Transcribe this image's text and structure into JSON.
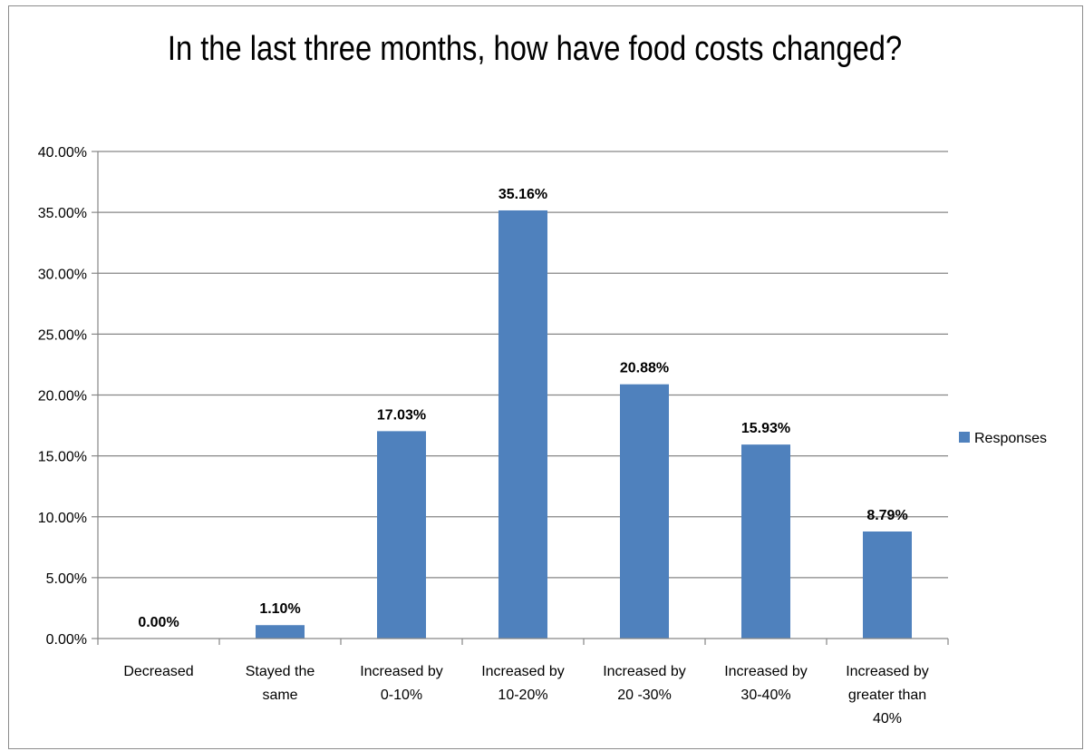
{
  "chart_data": {
    "type": "bar",
    "title": "In the last three months, how have food costs changed?",
    "categories": [
      [
        "Decreased"
      ],
      [
        "Stayed the",
        "same"
      ],
      [
        "Increased by",
        "0-10%"
      ],
      [
        "Increased by",
        "10-20%"
      ],
      [
        "Increased by",
        "20 -30%"
      ],
      [
        "Increased by",
        "30-40%"
      ],
      [
        "Increased by",
        "greater than",
        "40%"
      ]
    ],
    "series": [
      {
        "name": "Responses",
        "color": "#4f81bd",
        "values": [
          0.0,
          1.1,
          17.03,
          35.16,
          20.88,
          15.93,
          8.79
        ],
        "data_labels": [
          "0.00%",
          "1.10%",
          "17.03%",
          "35.16%",
          "20.88%",
          "15.93%",
          "8.79%"
        ]
      }
    ],
    "y_ticks": [
      "0.00%",
      "5.00%",
      "10.00%",
      "15.00%",
      "20.00%",
      "25.00%",
      "30.00%",
      "35.00%",
      "40.00%"
    ],
    "ylim": [
      0,
      40
    ],
    "grid": true,
    "legend_position": "right"
  }
}
